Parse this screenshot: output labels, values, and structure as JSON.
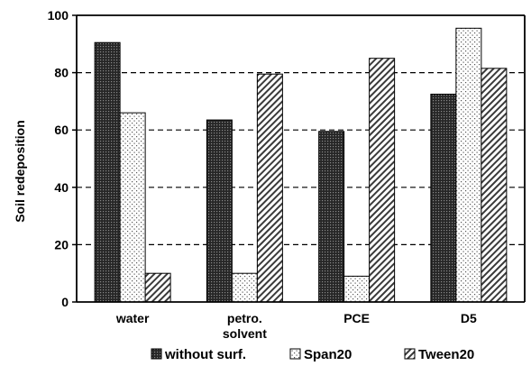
{
  "chart_data": {
    "type": "bar",
    "ylabel": "Soil redeposition",
    "xlabel": "",
    "ylim": [
      0,
      100
    ],
    "yticks": [
      0,
      20,
      40,
      60,
      80,
      100
    ],
    "grid": "horizontal dashed",
    "legend_position": "bottom",
    "categories": [
      [
        "water"
      ],
      [
        "petro.",
        "solvent"
      ],
      [
        "PCE"
      ],
      [
        "D5"
      ]
    ],
    "series": [
      {
        "name": "without surf.",
        "pattern": "dense-dots-dark",
        "values": [
          90.5,
          63.5,
          59.5,
          72.5
        ]
      },
      {
        "name": "Span20",
        "pattern": "sparse-dots-light",
        "values": [
          66,
          10,
          9,
          95.5
        ]
      },
      {
        "name": "Tween20",
        "pattern": "diagonal-hatch",
        "values": [
          10,
          79.5,
          85,
          81.5
        ]
      }
    ]
  }
}
